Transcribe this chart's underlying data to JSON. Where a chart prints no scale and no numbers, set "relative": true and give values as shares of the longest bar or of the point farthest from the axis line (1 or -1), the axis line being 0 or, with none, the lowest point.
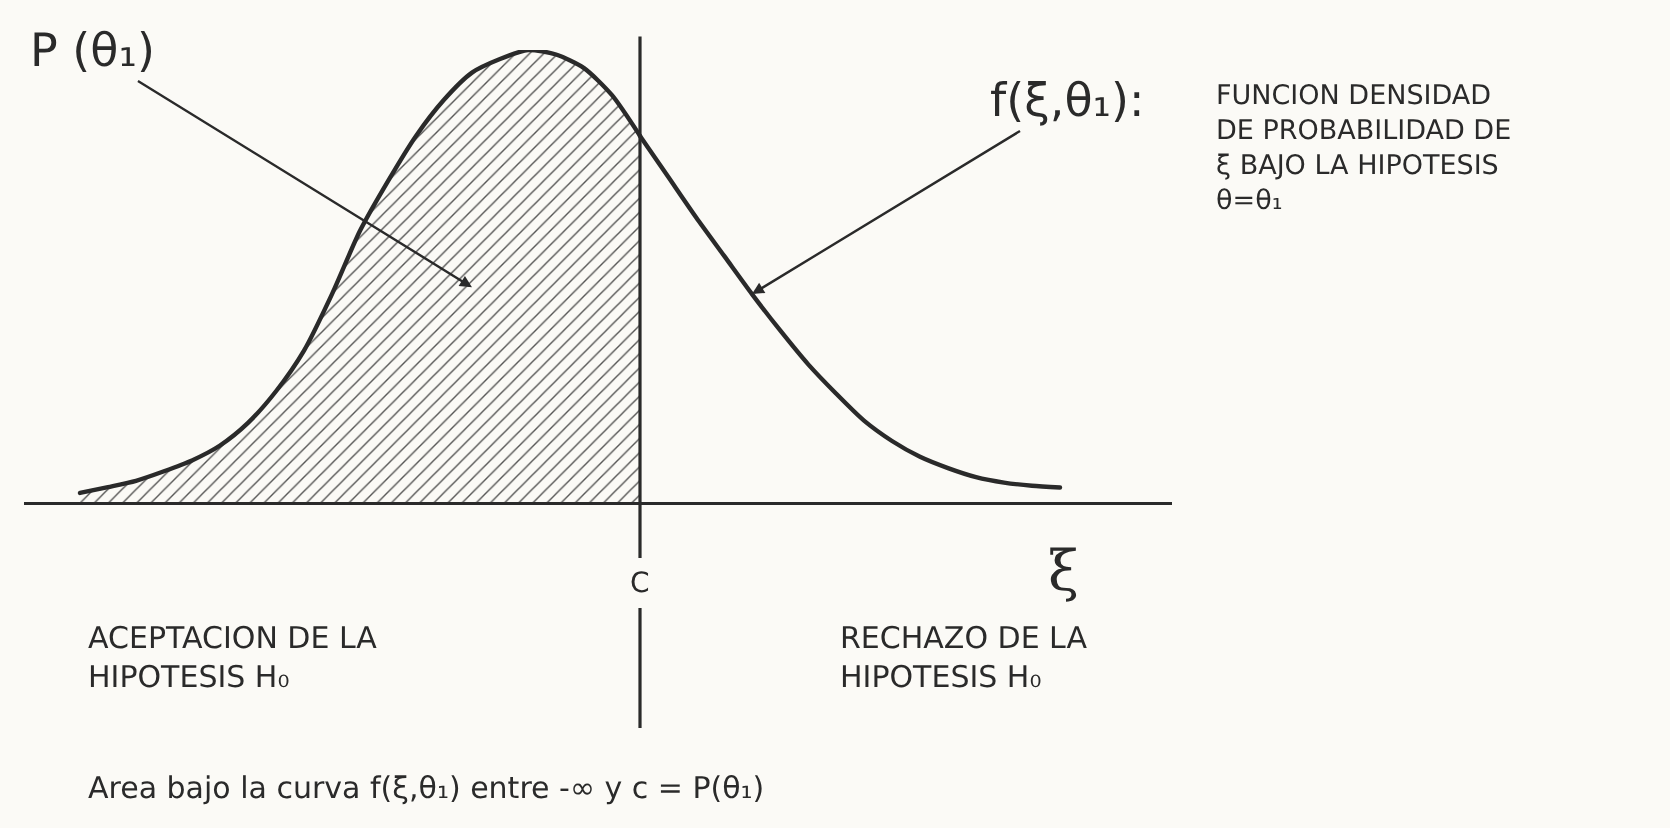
{
  "chart_data": {
    "type": "line",
    "relative": true,
    "categories": [
      null,
      null,
      null,
      null,
      null,
      null,
      null,
      null,
      null,
      null,
      null,
      null,
      null,
      null,
      null,
      null,
      null,
      null,
      null,
      null,
      null,
      null,
      null,
      null,
      null,
      null,
      null,
      null,
      null,
      null,
      null,
      null,
      null,
      null,
      null,
      null,
      null,
      null,
      null,
      null,
      null,
      null
    ],
    "series": [
      {
        "type": "area",
        "color": "#2a2a2a",
        "values": [
          null,
          null,
          0.02,
          0.033,
          0.047,
          0.068,
          0.092,
          0.125,
          0.175,
          0.245,
          0.335,
          0.46,
          0.6,
          0.71,
          0.81,
          0.89,
          0.95,
          0.98,
          1.0,
          0.99,
          0.96,
          0.9,
          0.81,
          null,
          null,
          null,
          null,
          null,
          null,
          null,
          null,
          null,
          null,
          null,
          null,
          null,
          null,
          null,
          null,
          null,
          null,
          null
        ]
      },
      {
        "color": "#2a2a2a",
        "values": [
          null,
          null,
          null,
          null,
          null,
          null,
          null,
          null,
          null,
          null,
          null,
          null,
          null,
          null,
          null,
          null,
          null,
          null,
          null,
          null,
          null,
          null,
          0.81,
          0.72,
          0.63,
          0.545,
          0.46,
          0.38,
          0.305,
          0.24,
          0.18,
          0.135,
          0.1,
          0.075,
          0.055,
          0.043,
          0.036,
          0.032,
          null,
          null,
          null,
          null
        ]
      }
    ],
    "xlabel": "ξ",
    "ref_lines": [
      {
        "axis": "x",
        "value": "C",
        "color": "#2a2a2a"
      }
    ],
    "annotations": [
      "P (θ₁)",
      "f(ξ,θ₁):",
      "FUNCION DENSIDAD\nDE PROBABILIDAD DE\nξ BAJO LA HIPOTESIS\nθ=θ₁",
      "ACEPTACION DE LA\nHIPOTESIS H₀",
      "RECHAZO DE LA\nHIPOTESIS H₀",
      "Area bajo la curva f(ξ,θ₁) entre -∞ y c = P(θ₁)"
    ]
  }
}
